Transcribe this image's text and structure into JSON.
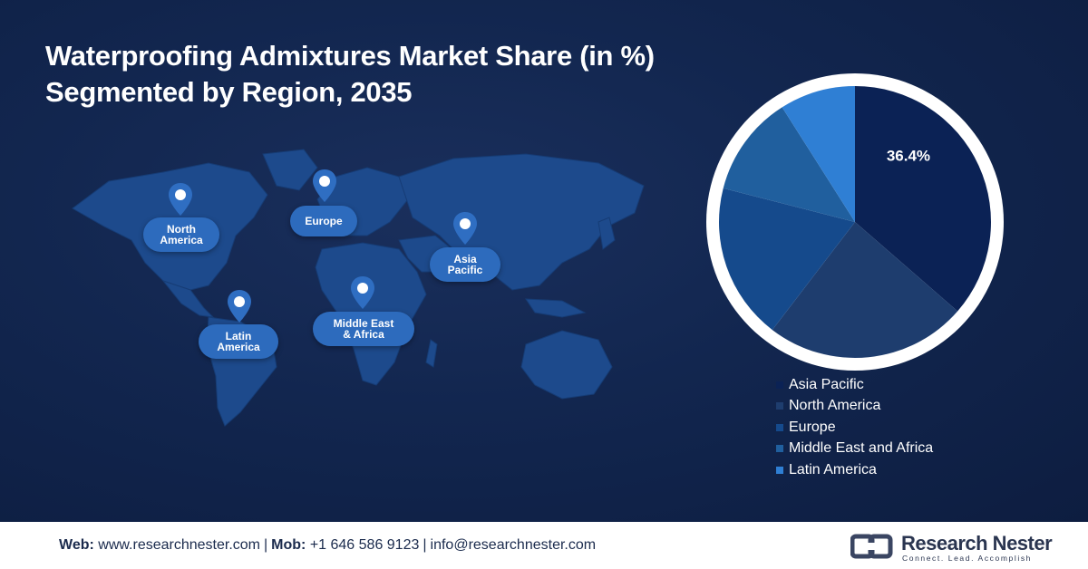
{
  "title": {
    "line1": "Waterproofing Admixtures Market Share (in %)",
    "line2": "Segmented by Region, 2035"
  },
  "map": {
    "regions": [
      {
        "label_line1": "North",
        "label_line2": "America"
      },
      {
        "label_line1": "Europe",
        "label_line2": ""
      },
      {
        "label_line1": "Asia",
        "label_line2": "Pacific"
      },
      {
        "label_line1": "Latin",
        "label_line2": "America"
      },
      {
        "label_line1": "Middle East",
        "label_line2": "& Africa"
      }
    ],
    "pin_icon": "map-pin-icon"
  },
  "chart_data": {
    "type": "pie",
    "title": "Waterproofing Admixtures Market Share (in %) Segmented by Region, 2035",
    "labels": [
      "Asia Pacific",
      "North America",
      "Europe",
      "Middle East and Africa",
      "Latin America"
    ],
    "values": [
      36.4,
      24.0,
      18.6,
      12.0,
      9.0
    ],
    "colors": [
      "#0b2255",
      "#1e3d6e",
      "#154a8c",
      "#205f9e",
      "#2f7fd4"
    ],
    "data_labels": [
      "36.4%",
      "",
      "",
      "",
      ""
    ],
    "legend_position": "bottom-right"
  },
  "footer": {
    "web_label": "Web:",
    "web_value": "www.researchnester.com",
    "mob_label": "Mob:",
    "mob_value": "+1 646 586 9123",
    "email": "info@researchnester.com",
    "logo_name": "Research Nester",
    "logo_tagline": "Connect. Lead. Accomplish"
  }
}
